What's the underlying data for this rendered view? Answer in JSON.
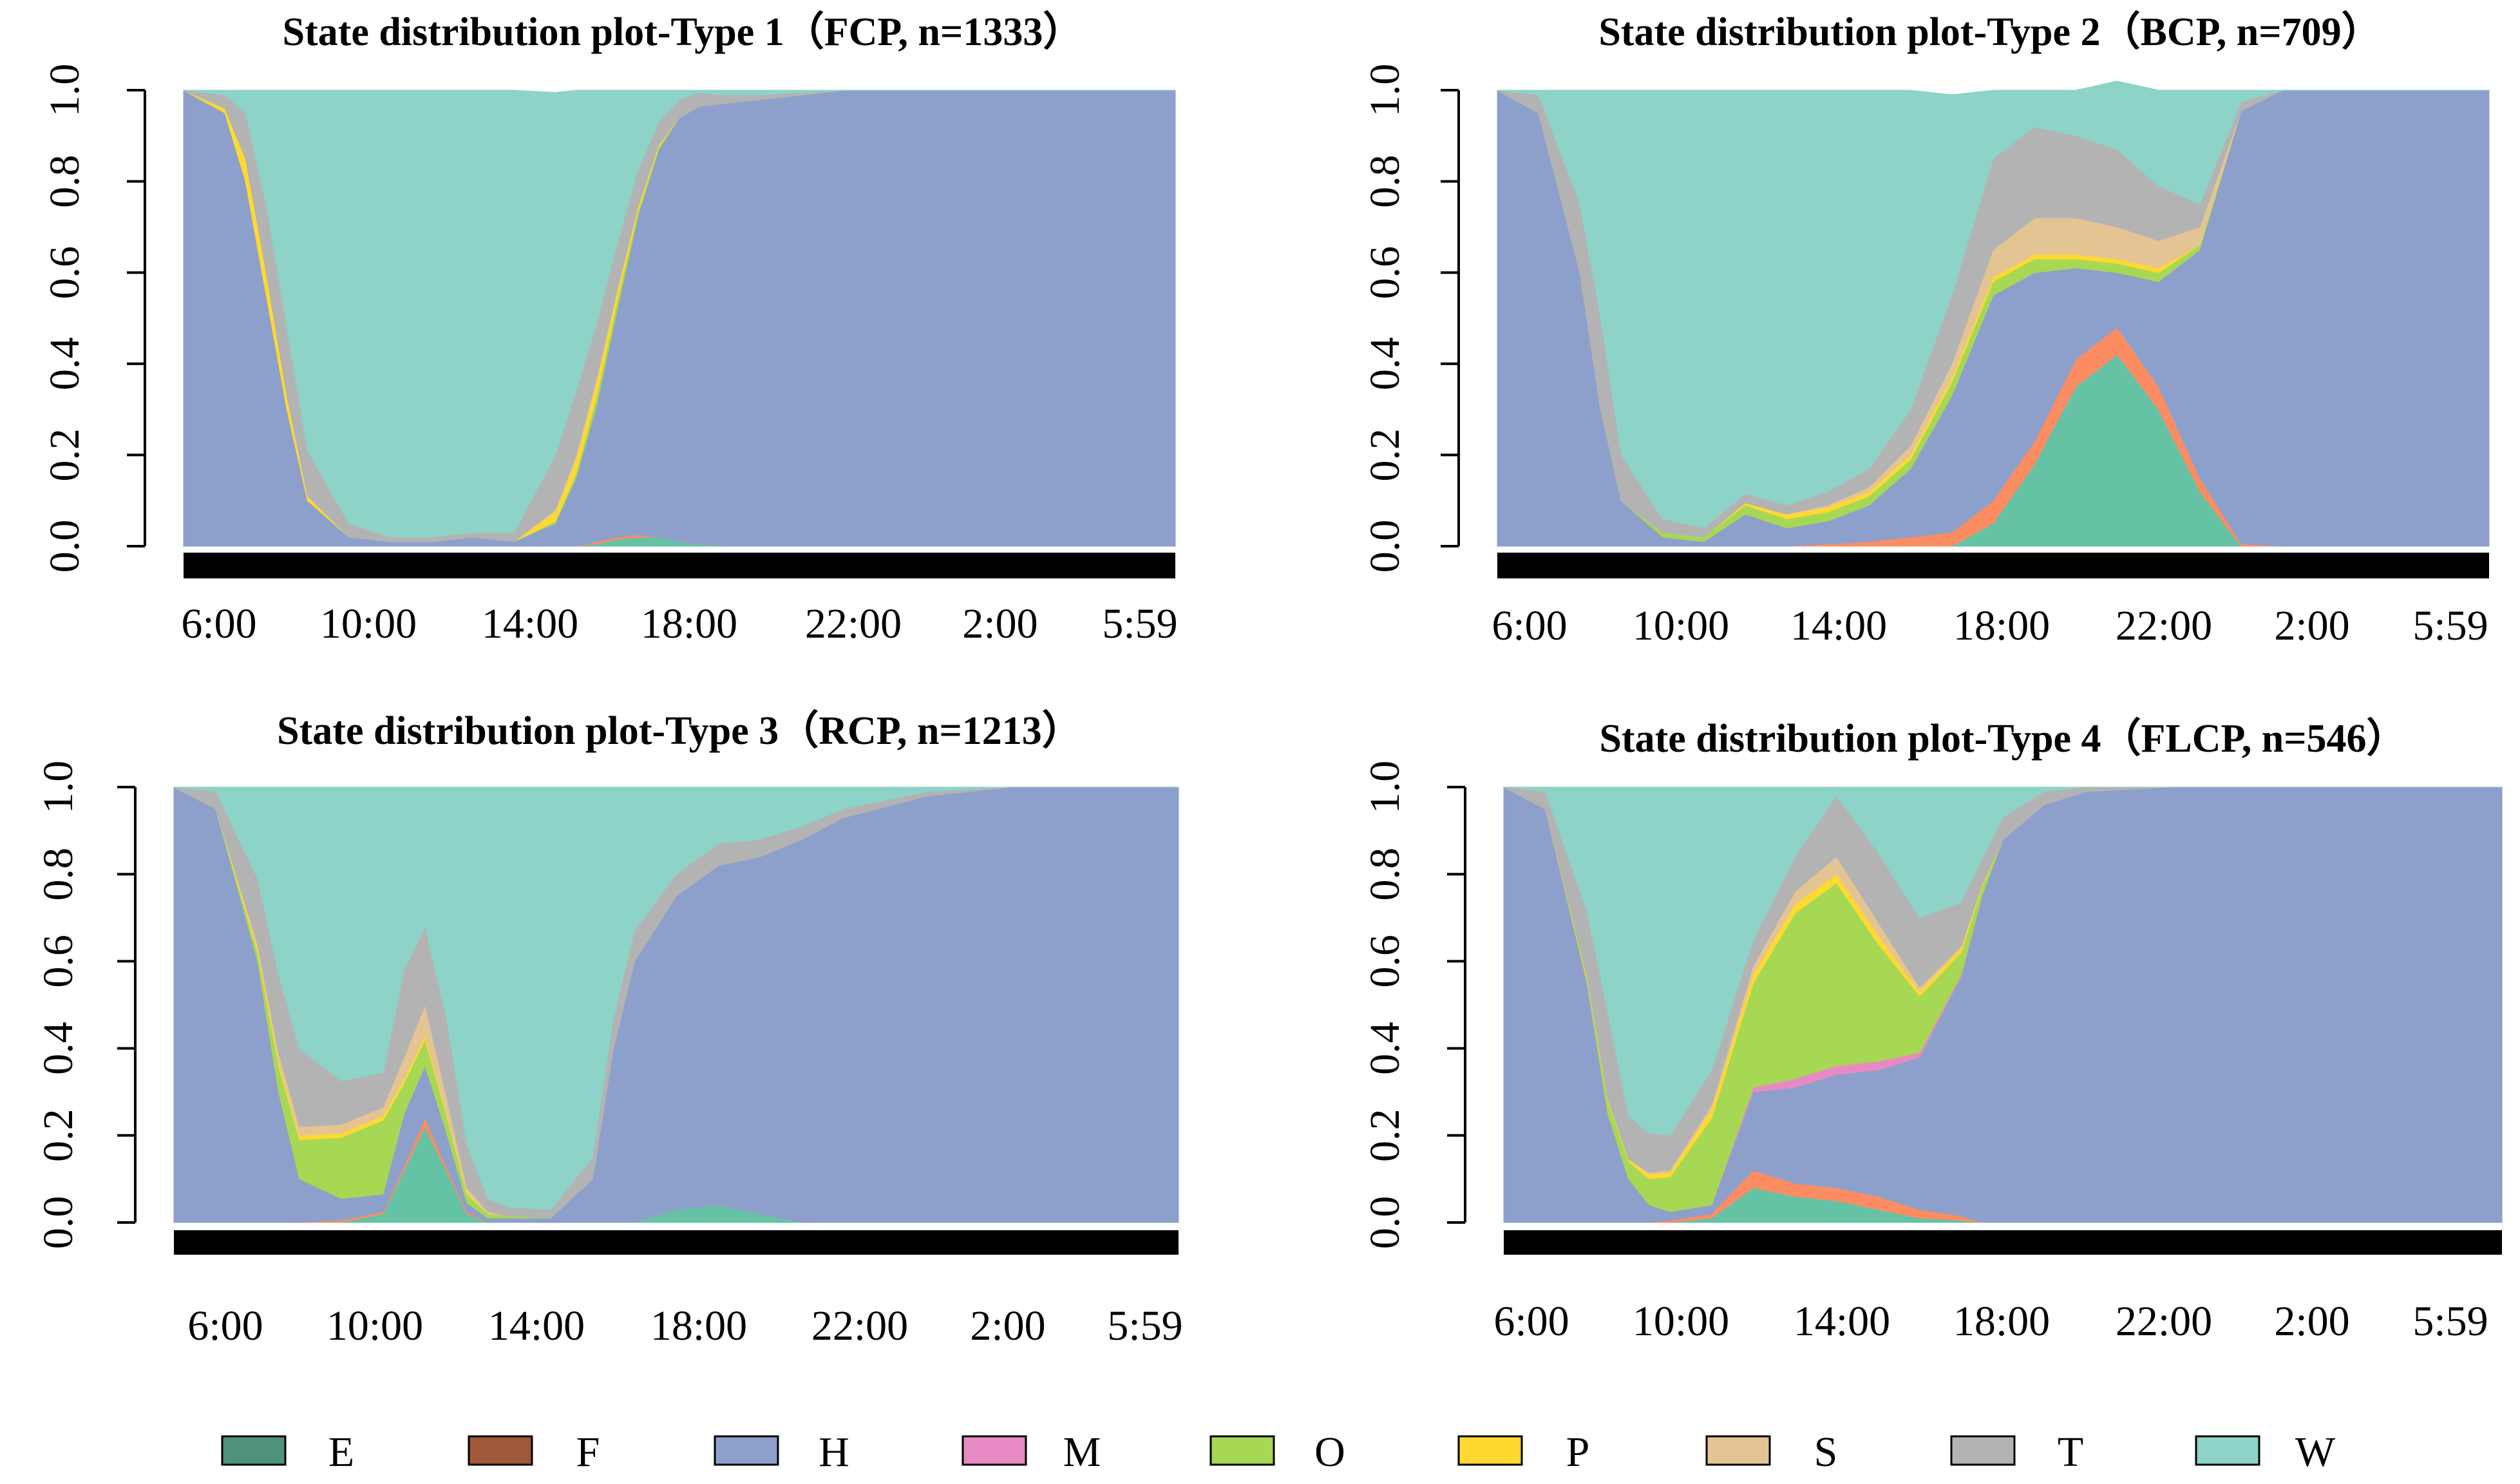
{
  "colors": {
    "E": "#66c2a5",
    "F": "#fc8d62",
    "H": "#8da0cb",
    "M": "#e78ac3",
    "O": "#a6d854",
    "P": "#ffd92f",
    "S": "#e5c494",
    "T": "#b3b3b3",
    "W": "#8dd3c7"
  },
  "legend": {
    "items": [
      {
        "key": "E",
        "label": "E",
        "swatch": "#4e917c"
      },
      {
        "key": "F",
        "label": "F",
        "swatch": "#a0573a"
      },
      {
        "key": "H",
        "label": "H",
        "swatch": "#8da0cb"
      },
      {
        "key": "M",
        "label": "M",
        "swatch": "#e78ac3"
      },
      {
        "key": "O",
        "label": "O",
        "swatch": "#a6d854"
      },
      {
        "key": "P",
        "label": "P",
        "swatch": "#ffd92f"
      },
      {
        "key": "S",
        "label": "S",
        "swatch": "#e5c494"
      },
      {
        "key": "T",
        "label": "T",
        "swatch": "#b3b3b3"
      },
      {
        "key": "W",
        "label": "W",
        "swatch": "#8dd3c7"
      }
    ]
  },
  "chart_data": [
    {
      "type": "area",
      "stacked": true,
      "title": "State distribution plot-Type 1（FCP, n=1333）",
      "ylim": [
        0,
        1
      ],
      "yticks": [
        "0.0",
        "0.2",
        "0.4",
        "0.6",
        "0.8",
        "1.0"
      ],
      "xticks": [
        "6:00",
        "10:00",
        "14:00",
        "18:00",
        "22:00",
        "2:00",
        "5:59"
      ],
      "x_hours": [
        0,
        1,
        1.5,
        2,
        2.5,
        3,
        4,
        5,
        6,
        7,
        8,
        9,
        9.5,
        10,
        10.5,
        11,
        11.5,
        12,
        12.5,
        13,
        14,
        15,
        16,
        18,
        20,
        22,
        24
      ],
      "series": [
        {
          "name": "E",
          "values": [
            0,
            0,
            0,
            0,
            0,
            0,
            0,
            0,
            0,
            0,
            0,
            0,
            0,
            0.005,
            0.015,
            0.02,
            0.02,
            0.01,
            0.005,
            0,
            0,
            0,
            0,
            0,
            0,
            0,
            0
          ]
        },
        {
          "name": "F",
          "values": [
            0,
            0,
            0,
            0,
            0,
            0,
            0,
            0,
            0,
            0,
            0,
            0,
            0,
            0.005,
            0.005,
            0.005,
            0,
            0,
            0,
            0,
            0,
            0,
            0,
            0,
            0,
            0,
            0
          ]
        },
        {
          "name": "H",
          "values": [
            1,
            0.95,
            0.8,
            0.55,
            0.3,
            0.1,
            0.02,
            0.01,
            0.01,
            0.02,
            0.01,
            0.05,
            0.15,
            0.3,
            0.5,
            0.7,
            0.85,
            0.93,
            0.96,
            0.97,
            0.98,
            0.99,
            1,
            1,
            1,
            1,
            1
          ]
        },
        {
          "name": "O",
          "values": [
            0,
            0,
            0,
            0,
            0,
            0,
            0,
            0,
            0,
            0,
            0,
            0.005,
            0.01,
            0.02,
            0.02,
            0.01,
            0.005,
            0,
            0,
            0,
            0,
            0,
            0,
            0,
            0,
            0,
            0
          ]
        },
        {
          "name": "P",
          "values": [
            0,
            0.01,
            0.05,
            0.05,
            0.03,
            0.01,
            0,
            0,
            0,
            0,
            0,
            0.02,
            0.03,
            0.03,
            0.02,
            0.01,
            0.005,
            0,
            0,
            0,
            0,
            0,
            0,
            0,
            0,
            0,
            0
          ]
        },
        {
          "name": "S",
          "values": [
            0,
            0,
            0,
            0,
            0,
            0,
            0,
            0,
            0,
            0,
            0,
            0.005,
            0.01,
            0.01,
            0.005,
            0,
            0,
            0,
            0,
            0,
            0,
            0,
            0,
            0,
            0,
            0,
            0
          ]
        },
        {
          "name": "T",
          "values": [
            0,
            0.03,
            0.1,
            0.15,
            0.15,
            0.1,
            0.03,
            0.01,
            0.01,
            0.01,
            0.02,
            0.12,
            0.14,
            0.12,
            0.1,
            0.08,
            0.05,
            0.04,
            0.03,
            0.02,
            0.01,
            0.005,
            0,
            0,
            0,
            0,
            0
          ]
        },
        {
          "name": "W",
          "values": [
            0,
            0.01,
            0.05,
            0.25,
            0.52,
            0.79,
            0.95,
            0.98,
            0.98,
            0.97,
            0.97,
            0.795,
            0.66,
            0.51,
            0.335,
            0.175,
            0.07,
            0.02,
            0.005,
            0.01,
            0.01,
            0.005,
            0,
            0,
            0,
            0,
            0
          ]
        }
      ]
    },
    {
      "type": "area",
      "stacked": true,
      "title": "State distribution plot-Type 2（BCP, n=709）",
      "ylim": [
        0,
        1
      ],
      "yticks": [
        "0.0",
        "0.2",
        "0.4",
        "0.6",
        "0.8",
        "1.0"
      ],
      "xticks": [
        "6:00",
        "10:00",
        "14:00",
        "18:00",
        "22:00",
        "2:00",
        "5:59"
      ],
      "x_hours": [
        0,
        1,
        2,
        2.5,
        3,
        4,
        5,
        6,
        7,
        8,
        9,
        10,
        11,
        12,
        13,
        14,
        15,
        16,
        17,
        18,
        19,
        20,
        22,
        24
      ],
      "series": [
        {
          "name": "E",
          "values": [
            0,
            0,
            0,
            0,
            0,
            0,
            0,
            0,
            0,
            0,
            0,
            0,
            0,
            0.05,
            0.18,
            0.35,
            0.42,
            0.3,
            0.12,
            0,
            0,
            0,
            0,
            0
          ]
        },
        {
          "name": "F",
          "values": [
            0,
            0,
            0,
            0,
            0,
            0,
            0,
            0,
            0,
            0.005,
            0.01,
            0.02,
            0.03,
            0.05,
            0.05,
            0.06,
            0.06,
            0.05,
            0.03,
            0.005,
            0,
            0,
            0,
            0
          ]
        },
        {
          "name": "H",
          "values": [
            1,
            0.95,
            0.6,
            0.3,
            0.1,
            0.02,
            0.01,
            0.07,
            0.04,
            0.05,
            0.08,
            0.15,
            0.3,
            0.45,
            0.37,
            0.2,
            0.12,
            0.23,
            0.5,
            0.95,
            1,
            1,
            1,
            1
          ]
        },
        {
          "name": "O",
          "values": [
            0,
            0,
            0,
            0,
            0,
            0.01,
            0.01,
            0.02,
            0.02,
            0.02,
            0.02,
            0.02,
            0.03,
            0.03,
            0.03,
            0.02,
            0.02,
            0.02,
            0.01,
            0,
            0,
            0,
            0,
            0
          ]
        },
        {
          "name": "P",
          "values": [
            0,
            0,
            0,
            0,
            0,
            0,
            0,
            0.005,
            0.01,
            0.01,
            0.01,
            0.01,
            0.01,
            0.01,
            0.01,
            0.01,
            0.01,
            0.01,
            0,
            0,
            0,
            0,
            0,
            0
          ]
        },
        {
          "name": "S",
          "values": [
            0,
            0,
            0,
            0,
            0,
            0,
            0,
            0,
            0,
            0.005,
            0.01,
            0.02,
            0.03,
            0.06,
            0.08,
            0.08,
            0.07,
            0.06,
            0.04,
            0,
            0,
            0,
            0,
            0
          ]
        },
        {
          "name": "T",
          "values": [
            0,
            0.04,
            0.15,
            0.2,
            0.1,
            0.03,
            0.02,
            0.02,
            0.02,
            0.03,
            0.04,
            0.08,
            0.15,
            0.2,
            0.2,
            0.18,
            0.17,
            0.12,
            0.05,
            0.02,
            0,
            0,
            0,
            0
          ]
        },
        {
          "name": "W",
          "values": [
            0,
            0.01,
            0.25,
            0.5,
            0.8,
            0.94,
            0.96,
            0.885,
            0.91,
            0.88,
            0.83,
            0.7,
            0.44,
            0.15,
            0.08,
            0.1,
            0.15,
            0.21,
            0.25,
            0.025,
            0,
            0,
            0,
            0
          ]
        }
      ]
    },
    {
      "type": "area",
      "stacked": true,
      "title": "State distribution plot-Type 3（RCP, n=1213）",
      "ylim": [
        0,
        1
      ],
      "yticks": [
        "0.0",
        "0.2",
        "0.4",
        "0.6",
        "0.8",
        "1.0"
      ],
      "xticks": [
        "6:00",
        "10:00",
        "14:00",
        "18:00",
        "22:00",
        "2:00",
        "5:59"
      ],
      "x_hours": [
        0,
        1,
        2,
        2.5,
        3,
        4,
        5,
        5.5,
        6,
        6.5,
        7,
        7.5,
        8,
        9,
        10,
        10.5,
        11,
        12,
        13,
        14,
        15,
        16,
        18,
        20,
        24
      ],
      "series": [
        {
          "name": "E",
          "values": [
            0,
            0,
            0,
            0,
            0,
            0,
            0.02,
            0.12,
            0.22,
            0.12,
            0.02,
            0,
            0,
            0,
            0,
            0,
            0,
            0.03,
            0.04,
            0.02,
            0,
            0,
            0,
            0,
            0
          ]
        },
        {
          "name": "F",
          "values": [
            0,
            0,
            0,
            0,
            0,
            0.005,
            0.005,
            0.01,
            0.02,
            0.01,
            0.005,
            0,
            0,
            0,
            0,
            0,
            0,
            0,
            0,
            0,
            0,
            0,
            0,
            0,
            0
          ]
        },
        {
          "name": "H",
          "values": [
            1,
            0.95,
            0.6,
            0.3,
            0.1,
            0.05,
            0.04,
            0.12,
            0.12,
            0.08,
            0.02,
            0.01,
            0.01,
            0.01,
            0.1,
            0.4,
            0.6,
            0.72,
            0.78,
            0.82,
            0.88,
            0.93,
            0.98,
            1,
            1
          ]
        },
        {
          "name": "O",
          "values": [
            0,
            0,
            0.02,
            0.06,
            0.09,
            0.14,
            0.17,
            0.07,
            0.06,
            0.04,
            0.02,
            0.01,
            0.005,
            0,
            0,
            0,
            0,
            0,
            0,
            0,
            0,
            0,
            0,
            0,
            0
          ]
        },
        {
          "name": "P",
          "values": [
            0,
            0,
            0.01,
            0.01,
            0.01,
            0.01,
            0.01,
            0.01,
            0.01,
            0.005,
            0.005,
            0,
            0,
            0,
            0,
            0,
            0,
            0,
            0,
            0,
            0,
            0,
            0,
            0,
            0
          ]
        },
        {
          "name": "S",
          "values": [
            0,
            0,
            0.01,
            0.02,
            0.02,
            0.02,
            0.02,
            0.05,
            0.07,
            0.04,
            0.01,
            0.005,
            0,
            0,
            0,
            0,
            0,
            0,
            0,
            0,
            0,
            0,
            0,
            0,
            0
          ]
        },
        {
          "name": "T",
          "values": [
            0,
            0.04,
            0.15,
            0.18,
            0.18,
            0.1,
            0.08,
            0.2,
            0.18,
            0.18,
            0.1,
            0.03,
            0.02,
            0.02,
            0.05,
            0.07,
            0.07,
            0.05,
            0.05,
            0.04,
            0.03,
            0.02,
            0.01,
            0,
            0
          ]
        },
        {
          "name": "W",
          "values": [
            0,
            0.01,
            0.21,
            0.43,
            0.6,
            0.675,
            0.655,
            0.42,
            0.32,
            0.525,
            0.82,
            0.945,
            0.965,
            0.97,
            0.85,
            0.53,
            0.33,
            0.2,
            0.13,
            0.12,
            0.09,
            0.05,
            0.01,
            0,
            0
          ]
        }
      ]
    },
    {
      "type": "area",
      "stacked": true,
      "title": "State distribution plot-Type 4（FLCP, n=546）",
      "ylim": [
        0,
        1
      ],
      "yticks": [
        "0.0",
        "0.2",
        "0.4",
        "0.6",
        "0.8",
        "1.0"
      ],
      "xticks": [
        "6:00",
        "10:00",
        "14:00",
        "18:00",
        "22:00",
        "2:00",
        "5:59"
      ],
      "x_hours": [
        0,
        1,
        2,
        2.5,
        3,
        3.5,
        4,
        5,
        6,
        7,
        8,
        9,
        10,
        11,
        11.5,
        12,
        13,
        14,
        16,
        18,
        20,
        24
      ],
      "series": [
        {
          "name": "E",
          "values": [
            0,
            0,
            0,
            0,
            0,
            0,
            0,
            0.01,
            0.08,
            0.06,
            0.05,
            0.03,
            0.01,
            0.005,
            0,
            0,
            0,
            0,
            0,
            0,
            0,
            0
          ]
        },
        {
          "name": "F",
          "values": [
            0,
            0,
            0,
            0,
            0,
            0,
            0.005,
            0.01,
            0.04,
            0.03,
            0.03,
            0.03,
            0.02,
            0.01,
            0,
            0,
            0,
            0,
            0,
            0,
            0,
            0
          ]
        },
        {
          "name": "H",
          "values": [
            1,
            0.95,
            0.55,
            0.25,
            0.1,
            0.04,
            0.02,
            0.02,
            0.18,
            0.22,
            0.26,
            0.29,
            0.35,
            0.55,
            0.75,
            0.88,
            0.96,
            0.99,
            1,
            1,
            1,
            1
          ]
        },
        {
          "name": "M",
          "values": [
            0,
            0,
            0,
            0,
            0,
            0,
            0,
            0,
            0.01,
            0.02,
            0.02,
            0.02,
            0.01,
            0.005,
            0,
            0,
            0,
            0,
            0,
            0,
            0,
            0
          ]
        },
        {
          "name": "O",
          "values": [
            0,
            0,
            0.01,
            0.03,
            0.04,
            0.06,
            0.08,
            0.2,
            0.24,
            0.38,
            0.42,
            0.27,
            0.13,
            0.05,
            0.02,
            0,
            0,
            0,
            0,
            0,
            0,
            0
          ]
        },
        {
          "name": "P",
          "values": [
            0,
            0,
            0.005,
            0.005,
            0.005,
            0.01,
            0.01,
            0.02,
            0.02,
            0.02,
            0.02,
            0.02,
            0.01,
            0.01,
            0.005,
            0,
            0,
            0,
            0,
            0,
            0,
            0
          ]
        },
        {
          "name": "S",
          "values": [
            0,
            0,
            0,
            0,
            0,
            0.005,
            0.005,
            0.01,
            0.02,
            0.03,
            0.04,
            0.03,
            0.01,
            0.005,
            0,
            0,
            0,
            0,
            0,
            0,
            0,
            0
          ]
        },
        {
          "name": "T",
          "values": [
            0,
            0.04,
            0.15,
            0.2,
            0.1,
            0.09,
            0.08,
            0.08,
            0.06,
            0.08,
            0.14,
            0.16,
            0.16,
            0.1,
            0.06,
            0.05,
            0.03,
            0.01,
            0,
            0,
            0,
            0
          ]
        },
        {
          "name": "W",
          "values": [
            0,
            0.01,
            0.285,
            0.515,
            0.755,
            0.795,
            0.8,
            0.65,
            0.35,
            0.16,
            0.02,
            0.15,
            0.3,
            0.265,
            0.165,
            0.07,
            0.01,
            0,
            0,
            0,
            0,
            0
          ]
        }
      ]
    }
  ]
}
